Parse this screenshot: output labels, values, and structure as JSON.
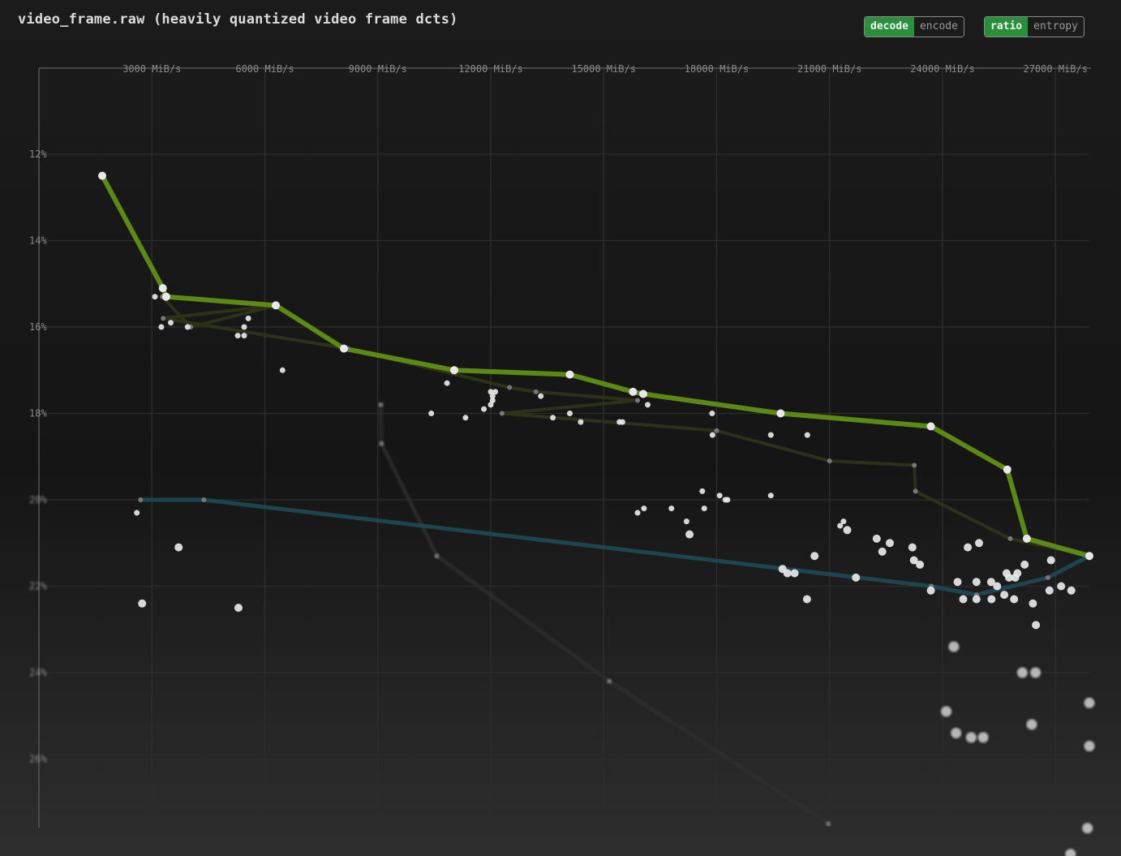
{
  "title": "video_frame.raw (heavily quantized video frame dcts)",
  "mode_toggle": {
    "options": [
      "decode",
      "encode"
    ],
    "selected": "decode"
  },
  "metric_toggle": {
    "options": [
      "ratio",
      "entropy"
    ],
    "selected": "ratio"
  },
  "colors": {
    "background": "#161616",
    "pareto_line": "#5a8a14",
    "teal_line": "#1f4a55",
    "dim_line": "#2e2e2e",
    "olive_line": "#2f3518",
    "point": "#e8e8e8",
    "grid": "#2c2c2c",
    "axis": "#555555",
    "toggle_active": "#2a8f3a"
  },
  "chart_data": {
    "type": "scatter",
    "title": "video_frame.raw (heavily quantized video frame dcts)",
    "xlabel": "",
    "ylabel": "",
    "x_ticks": [
      "3000 MiB/s",
      "6000 MiB/s",
      "9000 MiB/s",
      "12000 MiB/s",
      "15000 MiB/s",
      "18000 MiB/s",
      "21000 MiB/s",
      "24000 MiB/s",
      "27000 MiB/s"
    ],
    "y_ticks": [
      "12%",
      "14%",
      "16%",
      "18%",
      "20%",
      "22%",
      "24%",
      "26%"
    ],
    "xlim": [
      0,
      27900
    ],
    "ylim": [
      10,
      27.6
    ],
    "grid": true,
    "x_axis_position": "top",
    "y_axis_inverted": true,
    "series": [
      {
        "role": "pareto",
        "points": [
          [
            1680,
            12.5
          ],
          [
            3290,
            15.1
          ],
          [
            3380,
            15.3
          ],
          [
            6290,
            15.5
          ],
          [
            8100,
            16.5
          ],
          [
            11030,
            17.0
          ],
          [
            14100,
            17.1
          ],
          [
            15780,
            17.5
          ],
          [
            16050,
            17.55
          ],
          [
            19700,
            18.0
          ],
          [
            23690,
            18.3
          ],
          [
            25720,
            19.3
          ],
          [
            26240,
            20.9
          ],
          [
            27900,
            21.3
          ]
        ]
      },
      {
        "role": "teal",
        "points": [
          [
            2700,
            20.0
          ],
          [
            4380,
            20.0
          ],
          [
            23700,
            22.0
          ],
          [
            24900,
            22.2
          ],
          [
            26800,
            21.8
          ],
          [
            27900,
            21.3
          ]
        ]
      },
      {
        "role": "dim",
        "points": [
          [
            9080,
            17.8
          ],
          [
            9100,
            18.7
          ],
          [
            10570,
            21.3
          ],
          [
            15150,
            24.2
          ],
          [
            20970,
            27.5
          ]
        ]
      },
      {
        "role": "olive",
        "points": [
          [
            3280,
            15.3
          ],
          [
            4030,
            16.0
          ],
          [
            6290,
            15.5
          ],
          [
            3300,
            15.8
          ],
          [
            8200,
            16.5
          ],
          [
            12500,
            17.4
          ],
          [
            13200,
            17.5
          ],
          [
            15900,
            17.7
          ],
          [
            12300,
            18.0
          ],
          [
            18000,
            18.4
          ],
          [
            21000,
            19.1
          ],
          [
            23250,
            19.2
          ],
          [
            23280,
            19.8
          ],
          [
            25800,
            20.9
          ],
          [
            27900,
            21.3
          ]
        ]
      }
    ],
    "scatter_points": [
      [
        2600,
        20.3
      ],
      [
        3710,
        21.1
      ],
      [
        2740,
        22.4
      ],
      [
        5300,
        22.5
      ],
      [
        3080,
        15.3
      ],
      [
        3500,
        15.9
      ],
      [
        3250,
        16.0
      ],
      [
        3950,
        16.0
      ],
      [
        5560,
        15.8
      ],
      [
        5450,
        16.0
      ],
      [
        5280,
        16.2
      ],
      [
        5450,
        16.2
      ],
      [
        6470,
        17.0
      ],
      [
        10420,
        18.0
      ],
      [
        10840,
        17.3
      ],
      [
        11330,
        18.1
      ],
      [
        11820,
        17.9
      ],
      [
        12000,
        17.5
      ],
      [
        12050,
        17.6
      ],
      [
        12120,
        17.5
      ],
      [
        12000,
        17.8
      ],
      [
        12050,
        17.7
      ],
      [
        13330,
        17.6
      ],
      [
        13650,
        18.1
      ],
      [
        14390,
        18.2
      ],
      [
        14100,
        18.0
      ],
      [
        15420,
        18.2
      ],
      [
        15500,
        18.2
      ],
      [
        16170,
        17.8
      ],
      [
        17880,
        18.0
      ],
      [
        17890,
        18.5
      ],
      [
        16070,
        20.2
      ],
      [
        15900,
        20.3
      ],
      [
        16800,
        20.2
      ],
      [
        17200,
        20.5
      ],
      [
        17280,
        20.8
      ],
      [
        17620,
        19.8
      ],
      [
        17670,
        20.2
      ],
      [
        18080,
        19.9
      ],
      [
        18230,
        20.0
      ],
      [
        18290,
        20.0
      ],
      [
        19440,
        18.5
      ],
      [
        19440,
        19.9
      ],
      [
        20410,
        18.5
      ],
      [
        19750,
        21.6
      ],
      [
        19880,
        21.7
      ],
      [
        20070,
        21.7
      ],
      [
        20600,
        21.3
      ],
      [
        20400,
        22.3
      ],
      [
        21280,
        20.6
      ],
      [
        21370,
        20.5
      ],
      [
        21470,
        20.7
      ],
      [
        21700,
        21.8
      ],
      [
        22250,
        20.9
      ],
      [
        22400,
        21.2
      ],
      [
        22600,
        21.0
      ],
      [
        23200,
        21.1
      ],
      [
        23240,
        21.4
      ],
      [
        23400,
        21.5
      ],
      [
        23690,
        22.1
      ],
      [
        24550,
        22.3
      ],
      [
        24900,
        22.3
      ],
      [
        25300,
        22.3
      ],
      [
        25700,
        21.7
      ],
      [
        25640,
        22.2
      ],
      [
        25900,
        22.3
      ],
      [
        26400,
        22.4
      ],
      [
        26480,
        22.9
      ],
      [
        26120,
        24.0
      ],
      [
        26470,
        24.0
      ],
      [
        26880,
        21.4
      ],
      [
        27150,
        22.0
      ],
      [
        24400,
        21.9
      ],
      [
        24670,
        21.1
      ],
      [
        24970,
        21.0
      ],
      [
        25290,
        21.9
      ],
      [
        25450,
        22.0
      ],
      [
        25770,
        21.8
      ],
      [
        25930,
        21.8
      ],
      [
        25990,
        21.7
      ],
      [
        26840,
        22.1
      ],
      [
        27420,
        22.1
      ],
      [
        26180,
        21.5
      ],
      [
        27900,
        24.7
      ],
      [
        27900,
        25.7
      ],
      [
        27850,
        27.6
      ],
      [
        27400,
        28.2
      ],
      [
        24360,
        25.4
      ],
      [
        24760,
        25.5
      ],
      [
        24300,
        23.4
      ],
      [
        24900,
        21.9
      ],
      [
        24100,
        24.9
      ],
      [
        25080,
        25.5
      ],
      [
        26370,
        25.2
      ]
    ]
  }
}
